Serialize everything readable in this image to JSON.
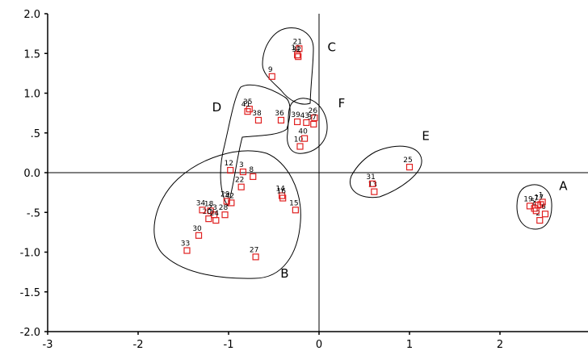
{
  "chart_data": {
    "type": "scatter",
    "xlim": [
      -3,
      3
    ],
    "ylim": [
      -2.0,
      2.0
    ],
    "x_ticks": [
      {
        "value": -3,
        "label": "-3"
      },
      {
        "value": -2,
        "label": "-2"
      },
      {
        "value": -1,
        "label": "-1"
      },
      {
        "value": 0,
        "label": "0"
      },
      {
        "value": 1,
        "label": "1"
      },
      {
        "value": 2,
        "label": "2"
      }
    ],
    "y_ticks": [
      {
        "value": 2.0,
        "label": "2.0"
      },
      {
        "value": 1.5,
        "label": "1.5"
      },
      {
        "value": 1.0,
        "label": "1.0"
      },
      {
        "value": 0.5,
        "label": ".5"
      },
      {
        "value": 0.0,
        "label": "0.0"
      },
      {
        "value": -0.5,
        "label": "-.5"
      },
      {
        "value": -1.0,
        "label": "-1.0"
      },
      {
        "value": -1.5,
        "label": "-1.5"
      },
      {
        "value": -2.0,
        "label": "-2.0"
      }
    ],
    "marker_color": "#e02020",
    "points": [
      {
        "label": "1",
        "x": 2.47,
        "y": -0.37
      },
      {
        "label": "2",
        "x": 2.44,
        "y": -0.6
      },
      {
        "label": "4",
        "x": 2.4,
        "y": -0.48
      },
      {
        "label": "5",
        "x": 2.38,
        "y": -0.45
      },
      {
        "label": "6",
        "x": 2.5,
        "y": -0.52
      },
      {
        "label": "7",
        "x": 2.42,
        "y": -0.41
      },
      {
        "label": "19",
        "x": 2.33,
        "y": -0.42
      },
      {
        "label": "3",
        "x": -0.84,
        "y": 0.01
      },
      {
        "label": "8",
        "x": -0.73,
        "y": -0.05
      },
      {
        "label": "9",
        "x": -0.52,
        "y": 1.21
      },
      {
        "label": "10",
        "x": -0.21,
        "y": 0.33
      },
      {
        "label": "11",
        "x": -0.24,
        "y": 1.48
      },
      {
        "label": "12",
        "x": -0.98,
        "y": 0.03
      },
      {
        "label": "13",
        "x": 0.61,
        "y": -0.24
      },
      {
        "label": "14",
        "x": -0.41,
        "y": -0.29
      },
      {
        "label": "15",
        "x": -0.26,
        "y": -0.47
      },
      {
        "label": "16",
        "x": -0.4,
        "y": -0.32
      },
      {
        "label": "17",
        "x": 2.45,
        "y": -0.4
      },
      {
        "label": "18",
        "x": -1.2,
        "y": -0.48
      },
      {
        "label": "20",
        "x": -1.22,
        "y": -0.58
      },
      {
        "label": "21",
        "x": -0.22,
        "y": 1.56
      },
      {
        "label": "22",
        "x": -0.86,
        "y": -0.18
      },
      {
        "label": "23",
        "x": -1.16,
        "y": -0.53
      },
      {
        "label": "24",
        "x": -1.14,
        "y": -0.6
      },
      {
        "label": "25",
        "x": 1.0,
        "y": 0.07
      },
      {
        "label": "26",
        "x": -0.05,
        "y": 0.69
      },
      {
        "label": "27",
        "x": -0.7,
        "y": -1.06
      },
      {
        "label": "28",
        "x": -1.04,
        "y": -0.53
      },
      {
        "label": "29",
        "x": -1.02,
        "y": -0.36
      },
      {
        "label": "30",
        "x": -1.33,
        "y": -0.79
      },
      {
        "label": "31",
        "x": 0.59,
        "y": -0.14
      },
      {
        "label": "32",
        "x": -0.23,
        "y": 1.46
      },
      {
        "label": "33",
        "x": -1.46,
        "y": -0.98
      },
      {
        "label": "34",
        "x": -1.29,
        "y": -0.47
      },
      {
        "label": "35",
        "x": -0.77,
        "y": 0.8
      },
      {
        "label": "36",
        "x": -0.42,
        "y": 0.66
      },
      {
        "label": "37",
        "x": -0.06,
        "y": 0.61
      },
      {
        "label": "38",
        "x": -0.67,
        "y": 0.66
      },
      {
        "label": "39",
        "x": -0.24,
        "y": 0.64
      },
      {
        "label": "40",
        "x": -0.16,
        "y": 0.43
      },
      {
        "label": "41",
        "x": -0.79,
        "y": 0.77
      },
      {
        "label": "42",
        "x": -0.97,
        "y": -0.38
      },
      {
        "label": "43",
        "x": -0.14,
        "y": 0.63
      }
    ],
    "groups": [
      {
        "label": "A",
        "x": 2.7,
        "y": -0.22
      },
      {
        "label": "B",
        "x": -0.38,
        "y": -1.32
      },
      {
        "label": "C",
        "x": 0.14,
        "y": 1.53
      },
      {
        "label": "D",
        "x": -1.13,
        "y": 0.77
      },
      {
        "label": "E",
        "x": 1.18,
        "y": 0.41
      },
      {
        "label": "F",
        "x": 0.25,
        "y": 0.82
      }
    ]
  }
}
